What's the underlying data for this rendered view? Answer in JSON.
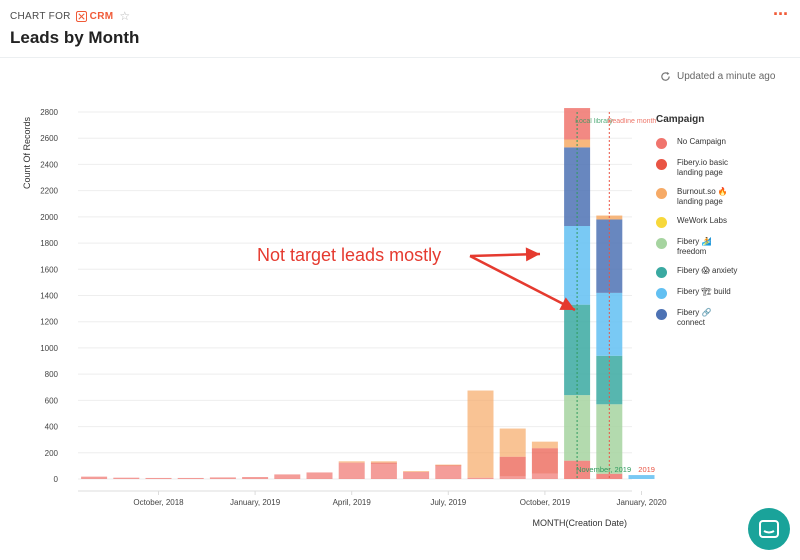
{
  "header": {
    "crumb_prefix": "CHART FOR",
    "app_name": "CRM",
    "title": "Leads by Month",
    "more_label": "···"
  },
  "status": {
    "updated_text": "Updated a minute ago"
  },
  "legend": {
    "title": "Campaign",
    "items": [
      {
        "label": "No Campaign",
        "color": "#f0746d"
      },
      {
        "label": "Fibery.io basic landing page",
        "color": "#e95444"
      },
      {
        "label": "Burnout.so 🔥 landing page",
        "color": "#f6aa66"
      },
      {
        "label": "WeWork Labs",
        "color": "#f7d83b"
      },
      {
        "label": "Fibery 🏄 freedom",
        "color": "#a6d4a0"
      },
      {
        "label": "Fibery 😱 anxiety",
        "color": "#3aa9a1"
      },
      {
        "label": "Fibery 🏗 build",
        "color": "#62c0f2"
      },
      {
        "label": "Fibery 🔗 connect",
        "color": "#4d72b4"
      }
    ]
  },
  "annotation": {
    "text": "Not target leads mostly",
    "color": "#e53a2f"
  },
  "chart_data": {
    "type": "bar",
    "stacked": true,
    "xlabel": "MONTH(Creation Date)",
    "ylabel": "Count Of Records",
    "ylim": [
      0,
      2800
    ],
    "yticks": [
      0,
      200,
      400,
      600,
      800,
      1000,
      1200,
      1400,
      1600,
      1800,
      2000,
      2200,
      2400,
      2600,
      2800
    ],
    "grid": true,
    "legend_position": "right",
    "categories": [
      "2018-08",
      "2018-09",
      "2018-10",
      "2018-11",
      "2018-12",
      "2019-01",
      "2019-02",
      "2019-03",
      "2019-04",
      "2019-05",
      "2019-06",
      "2019-07",
      "2019-08",
      "2019-09",
      "2019-10",
      "2019-11",
      "2019-12",
      "2020-01"
    ],
    "x_tick_labels": [
      {
        "category": "2018-10",
        "label": "October, 2018"
      },
      {
        "category": "2019-01",
        "label": "January, 2019"
      },
      {
        "category": "2019-04",
        "label": "April, 2019"
      },
      {
        "category": "2019-07",
        "label": "July, 2019"
      },
      {
        "category": "2019-10",
        "label": "October, 2019"
      },
      {
        "category": "2020-01",
        "label": "January, 2020"
      }
    ],
    "series": [
      {
        "name": "No Campaign",
        "color": "#f0746d",
        "values": [
          18,
          10,
          8,
          8,
          12,
          15,
          35,
          50,
          125,
          115,
          55,
          100,
          10,
          20,
          40,
          140,
          40,
          0
        ]
      },
      {
        "name": "Fibery.io basic landing page",
        "color": "#e95444",
        "values": [
          0,
          0,
          0,
          0,
          0,
          0,
          0,
          0,
          0,
          10,
          0,
          5,
          0,
          150,
          195,
          0,
          0,
          0
        ]
      },
      {
        "name": "Burnout.so 🔥 landing page",
        "color": "#f6aa66",
        "values": [
          0,
          0,
          0,
          0,
          0,
          0,
          0,
          0,
          10,
          10,
          5,
          5,
          665,
          215,
          50,
          0,
          0,
          0
        ]
      },
      {
        "name": "WeWork Labs",
        "color": "#f7d83b",
        "values": [
          0,
          0,
          0,
          0,
          0,
          0,
          0,
          0,
          0,
          0,
          0,
          0,
          0,
          0,
          0,
          0,
          0,
          0
        ]
      },
      {
        "name": "Fibery 🏄 freedom",
        "color": "#a6d4a0",
        "values": [
          0,
          0,
          0,
          0,
          0,
          0,
          0,
          0,
          0,
          0,
          0,
          0,
          0,
          0,
          0,
          500,
          530,
          0
        ]
      },
      {
        "name": "Fibery 😱 anxiety",
        "color": "#3aa9a1",
        "values": [
          0,
          0,
          0,
          0,
          0,
          0,
          0,
          0,
          0,
          0,
          0,
          0,
          0,
          0,
          0,
          690,
          370,
          0
        ]
      },
      {
        "name": "Fibery 🏗 build",
        "color": "#62c0f2",
        "values": [
          0,
          0,
          0,
          0,
          0,
          0,
          0,
          0,
          0,
          0,
          0,
          0,
          0,
          0,
          0,
          600,
          480,
          30
        ]
      },
      {
        "name": "Fibery 🔗 connect",
        "color": "#4d72b4",
        "values": [
          0,
          0,
          0,
          0,
          0,
          0,
          0,
          0,
          0,
          0,
          0,
          0,
          0,
          0,
          0,
          600,
          560,
          0
        ]
      }
    ],
    "top_segments": [
      {
        "category": "2019-11",
        "value": 60,
        "color": "#f6aa66"
      },
      {
        "category": "2019-11",
        "value": 240,
        "color": "#f0746d"
      },
      {
        "category": "2019-12",
        "value": 30,
        "color": "#f6aa66"
      }
    ],
    "reference_lines": [
      {
        "category_position": "2019-11",
        "color": "#2e9a5e",
        "text": "Local library"
      },
      {
        "category_position": "2019-11b",
        "color": "#e95444",
        "text": "Deadline month"
      }
    ],
    "bottom_annotation": {
      "text": "November, 2019",
      "color": "#2e9a5e"
    },
    "bottom_annotation_2": {
      "text": "2019",
      "color": "#e95444"
    }
  }
}
